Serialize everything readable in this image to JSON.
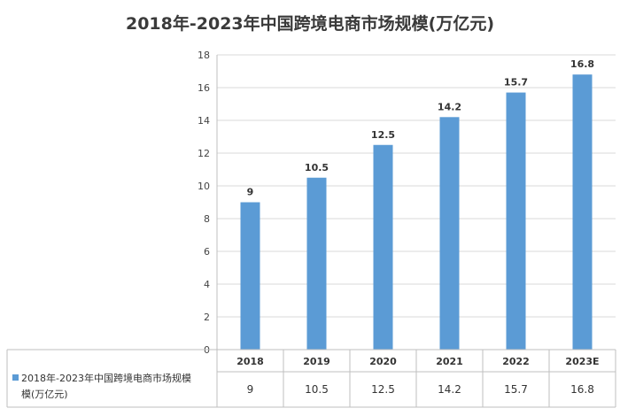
{
  "chart_data": {
    "type": "bar",
    "title": "2018年-2023年中国跨境电商市场规模(万亿元)",
    "categories": [
      "2018",
      "2019",
      "2020",
      "2021",
      "2022",
      "2023E"
    ],
    "series": [
      {
        "name": "2018年-2023年中国跨境电商市场规模(万亿元)",
        "values": [
          9,
          10.5,
          12.5,
          14.2,
          15.7,
          16.8
        ],
        "color": "#5b9bd5"
      }
    ],
    "data_labels": [
      "9",
      "10.5",
      "12.5",
      "14.2",
      "15.7",
      "16.8"
    ],
    "table_values": [
      "9",
      "10.5",
      "12.5",
      "14.2",
      "15.7",
      "16.8"
    ],
    "legend_text_line1": "2018年-2023年中国跨境电商市场规模",
    "legend_text_line2": "模(万亿元)",
    "ylim": [
      0,
      18
    ],
    "yticks": [
      0,
      2,
      4,
      6,
      8,
      10,
      12,
      14,
      16,
      18
    ],
    "grid": true,
    "legend_placement": "data table",
    "xlabel": "",
    "ylabel": ""
  }
}
